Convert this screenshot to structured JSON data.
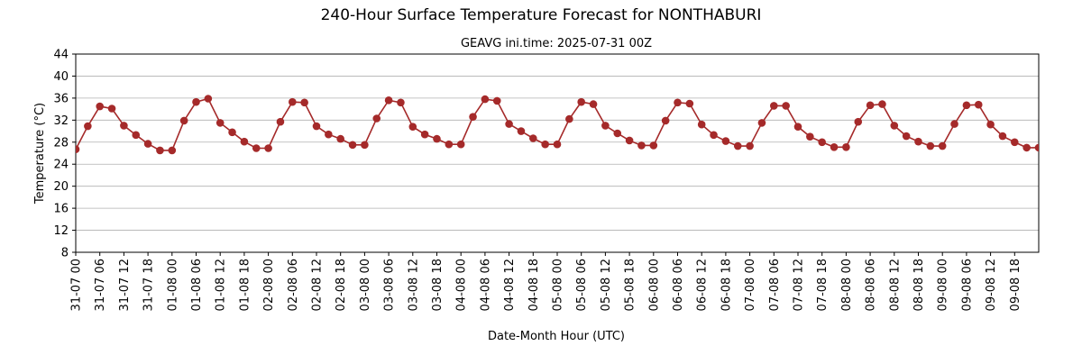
{
  "chart_data": {
    "type": "line",
    "title": "240-Hour Surface Temperature Forecast for NONTHABURI",
    "subtitle": "GEAVG ini.time: 2025-07-31 00Z",
    "xlabel": "Date-Month Hour (UTC)",
    "ylabel": "Temperature (°C)",
    "ylim": [
      8,
      44
    ],
    "yticks": [
      8,
      12,
      16,
      20,
      24,
      28,
      32,
      36,
      40,
      44
    ],
    "grid": "horizontal",
    "x": [
      "31-07 00",
      "31-07 03",
      "31-07 06",
      "31-07 09",
      "31-07 12",
      "31-07 15",
      "31-07 18",
      "31-07 21",
      "01-08 00",
      "01-08 03",
      "01-08 06",
      "01-08 09",
      "01-08 12",
      "01-08 15",
      "01-08 18",
      "01-08 21",
      "02-08 00",
      "02-08 03",
      "02-08 06",
      "02-08 09",
      "02-08 12",
      "02-08 15",
      "02-08 18",
      "02-08 21",
      "03-08 00",
      "03-08 03",
      "03-08 06",
      "03-08 09",
      "03-08 12",
      "03-08 15",
      "03-08 18",
      "03-08 21",
      "04-08 00",
      "04-08 03",
      "04-08 06",
      "04-08 09",
      "04-08 12",
      "04-08 15",
      "04-08 18",
      "04-08 21",
      "05-08 00",
      "05-08 03",
      "05-08 06",
      "05-08 09",
      "05-08 12",
      "05-08 15",
      "05-08 18",
      "05-08 21",
      "06-08 00",
      "06-08 03",
      "06-08 06",
      "06-08 09",
      "06-08 12",
      "06-08 15",
      "06-08 18",
      "06-08 21",
      "07-08 00",
      "07-08 03",
      "07-08 06",
      "07-08 09",
      "07-08 12",
      "07-08 15",
      "07-08 18",
      "07-08 21",
      "08-08 00",
      "08-08 03",
      "08-08 06",
      "08-08 09",
      "08-08 12",
      "08-08 15",
      "08-08 18",
      "08-08 21",
      "09-08 00",
      "09-08 03",
      "09-08 06",
      "09-08 09",
      "09-08 12",
      "09-08 15",
      "09-08 18",
      "09-08 21",
      "10-08 00"
    ],
    "xtick_labels": [
      "31-07 00",
      "31-07 06",
      "31-07 12",
      "31-07 18",
      "01-08 00",
      "01-08 06",
      "01-08 12",
      "01-08 18",
      "02-08 00",
      "02-08 06",
      "02-08 12",
      "02-08 18",
      "03-08 00",
      "03-08 06",
      "03-08 12",
      "03-08 18",
      "04-08 00",
      "04-08 06",
      "04-08 12",
      "04-08 18",
      "05-08 00",
      "05-08 06",
      "05-08 12",
      "05-08 18",
      "06-08 00",
      "06-08 06",
      "06-08 12",
      "06-08 18",
      "07-08 00",
      "07-08 06",
      "07-08 12",
      "07-08 18",
      "08-08 00",
      "08-08 06",
      "08-08 12",
      "08-08 18",
      "09-08 00",
      "09-08 06",
      "09-08 12",
      "09-08 18"
    ],
    "series": [
      {
        "color": "#a52a2a",
        "values": [
          26.7,
          30.9,
          34.5,
          34.1,
          31.0,
          29.3,
          27.7,
          26.5,
          26.5,
          31.9,
          35.3,
          35.9,
          31.5,
          29.8,
          28.1,
          26.9,
          26.9,
          31.7,
          35.3,
          35.2,
          30.9,
          29.4,
          28.6,
          27.5,
          27.5,
          32.3,
          35.6,
          35.2,
          30.8,
          29.4,
          28.6,
          27.6,
          27.6,
          32.6,
          35.8,
          35.5,
          31.3,
          30.0,
          28.7,
          27.6,
          27.6,
          32.2,
          35.3,
          34.9,
          31.0,
          29.6,
          28.3,
          27.4,
          27.4,
          31.9,
          35.2,
          35.0,
          31.2,
          29.3,
          28.2,
          27.3,
          27.3,
          31.5,
          34.6,
          34.6,
          30.8,
          29.0,
          28.0,
          27.1,
          27.1,
          31.7,
          34.7,
          34.9,
          31.0,
          29.1,
          28.1,
          27.3,
          27.3,
          31.3,
          34.7,
          34.8,
          31.2,
          29.1,
          28.0,
          27.0,
          27.0
        ]
      }
    ]
  }
}
